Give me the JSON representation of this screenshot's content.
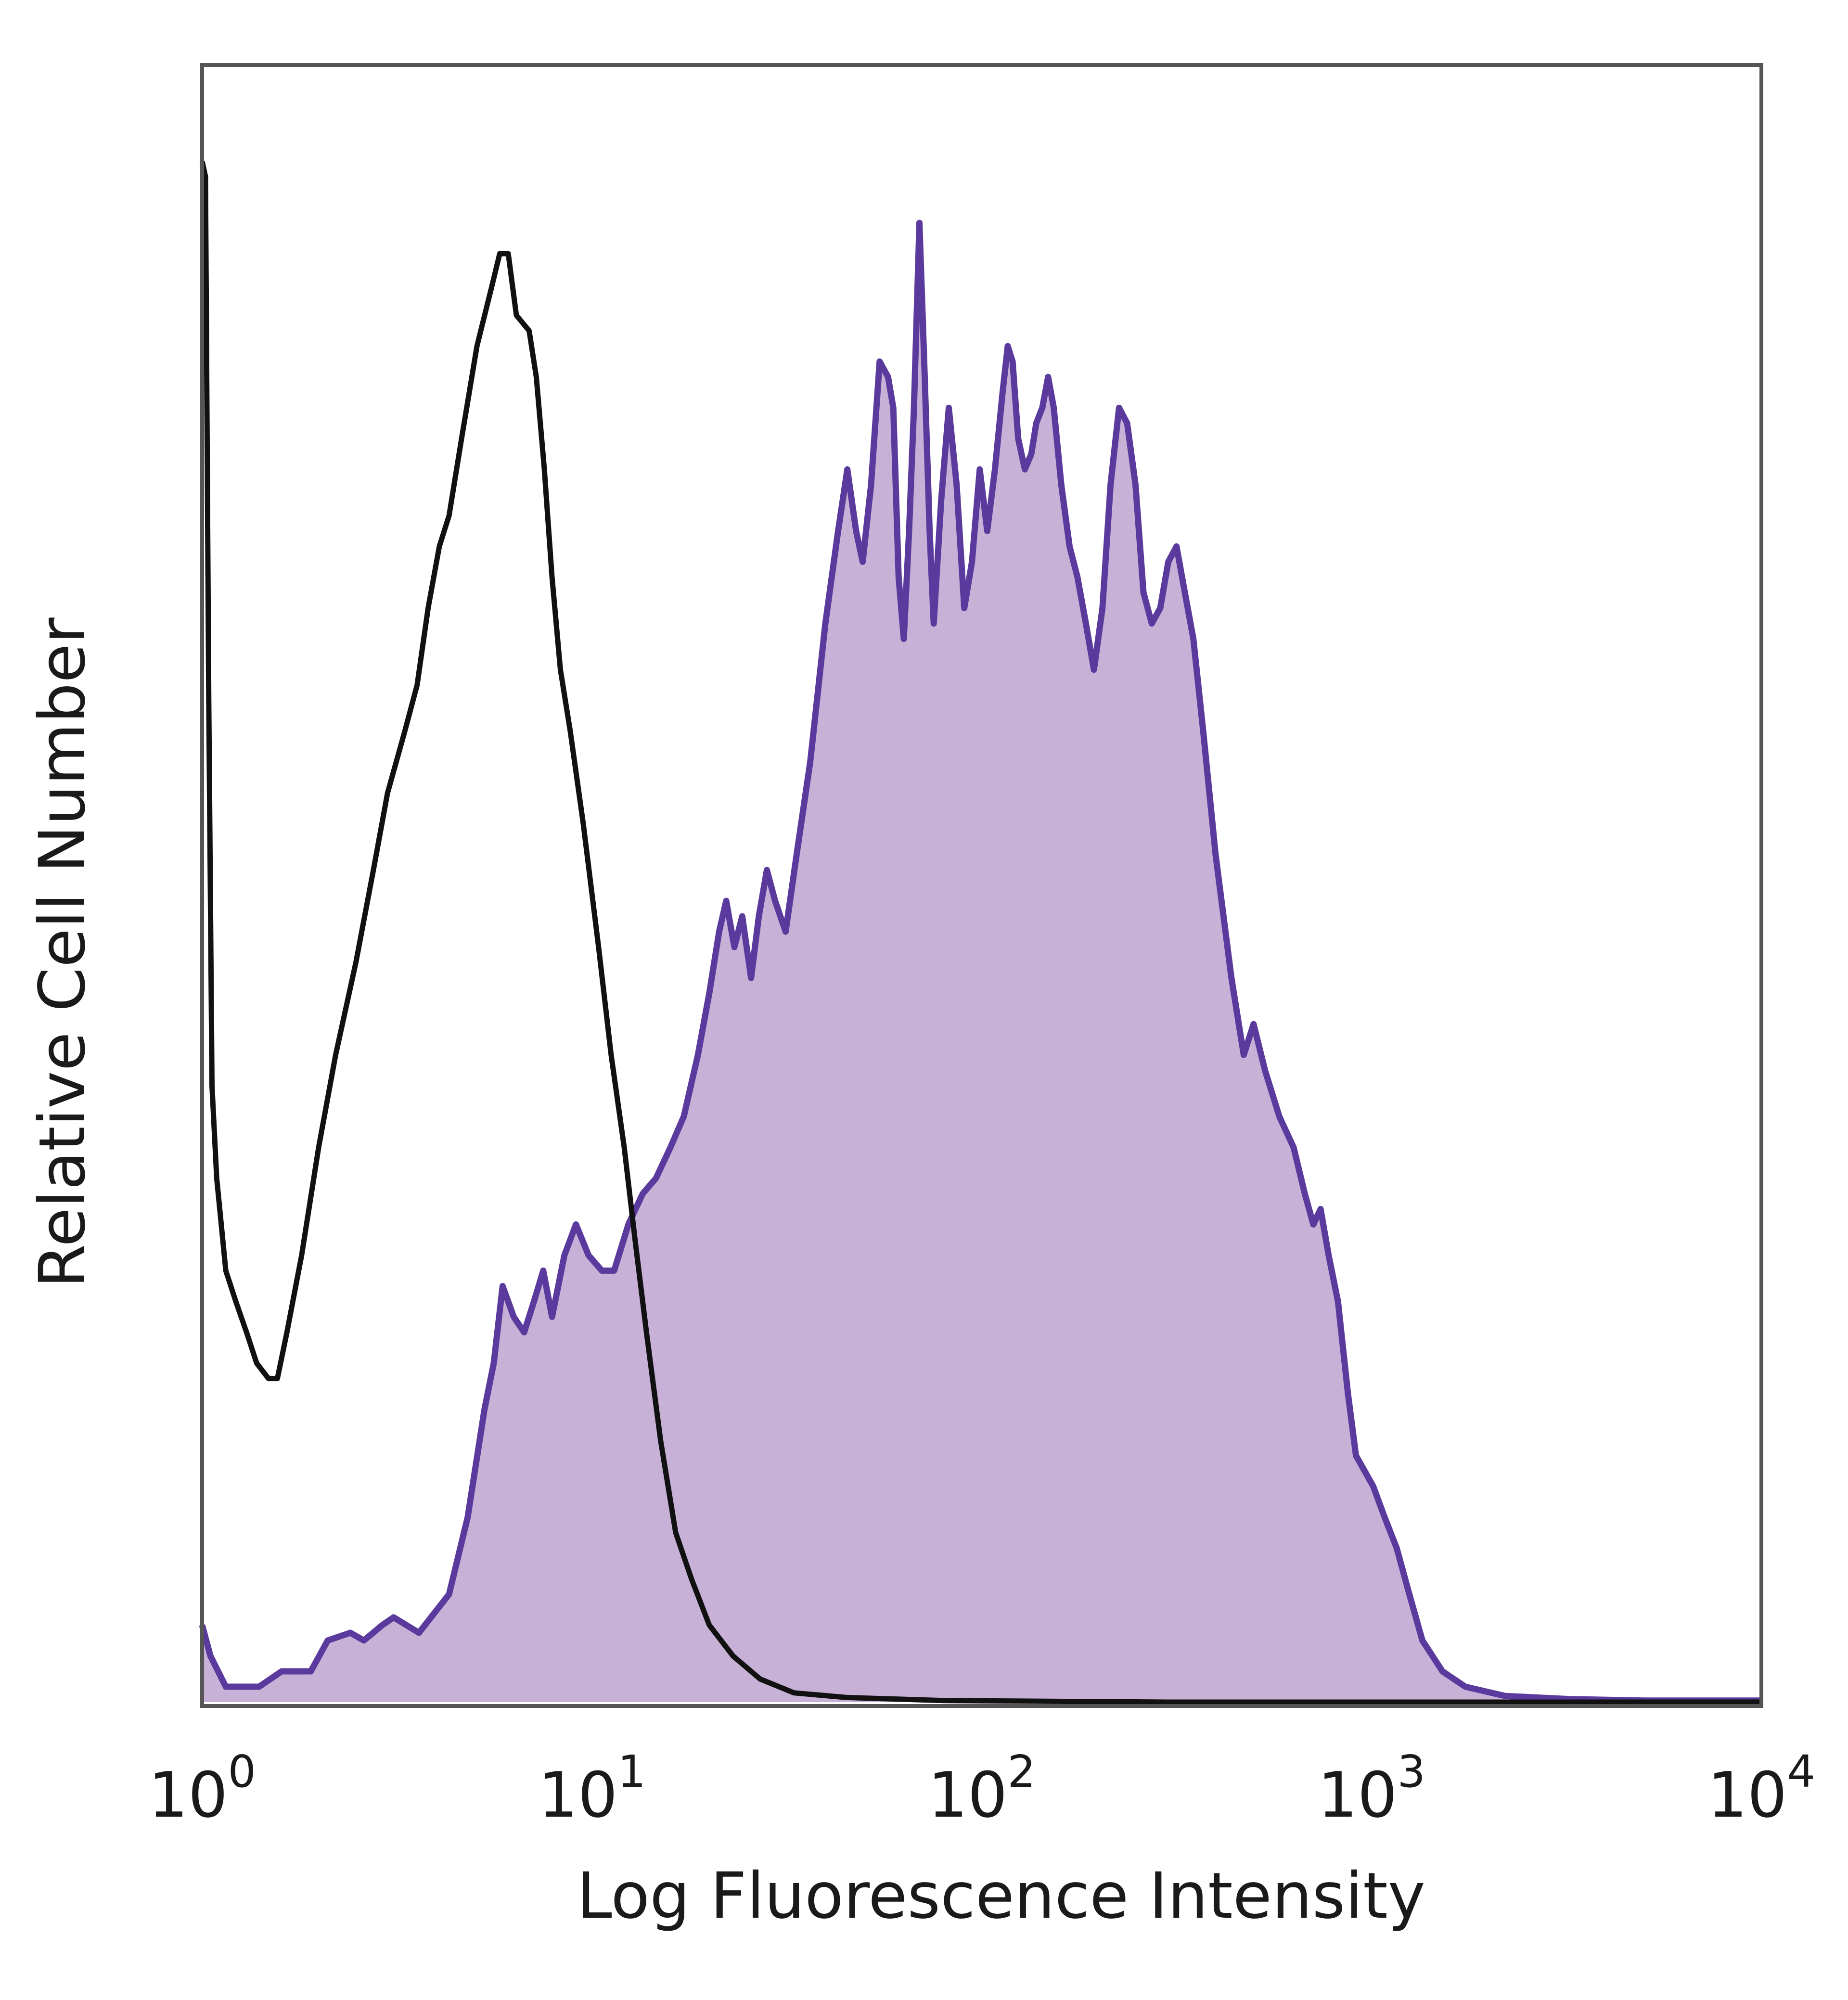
{
  "chart_data": {
    "type": "area",
    "xscale": "log",
    "xlim": [
      1,
      10000
    ],
    "ylim": [
      0,
      1
    ],
    "grid": false,
    "xlabel": "Log Fluorescence Intensity",
    "ylabel": "Relative Cell Number",
    "xticks": [
      {
        "base": "10",
        "exp": "0",
        "value": 1
      },
      {
        "base": "10",
        "exp": "1",
        "value": 10
      },
      {
        "base": "10",
        "exp": "2",
        "value": 100
      },
      {
        "base": "10",
        "exp": "3",
        "value": 1000
      },
      {
        "base": "10",
        "exp": "4",
        "value": 10000
      }
    ],
    "series": [
      {
        "style": "filled",
        "color": "#5b3a9e",
        "fill": "#c8b1d6",
        "points": [
          [
            1.0,
            0.05
          ],
          [
            1.05,
            0.03
          ],
          [
            1.15,
            0.01
          ],
          [
            1.4,
            0.01
          ],
          [
            1.6,
            0.02
          ],
          [
            1.9,
            0.02
          ],
          [
            2.1,
            0.04
          ],
          [
            2.4,
            0.045
          ],
          [
            2.6,
            0.04
          ],
          [
            2.9,
            0.05
          ],
          [
            3.1,
            0.055
          ],
          [
            3.6,
            0.045
          ],
          [
            4.3,
            0.07
          ],
          [
            4.8,
            0.12
          ],
          [
            5.3,
            0.19
          ],
          [
            5.6,
            0.22
          ],
          [
            5.9,
            0.27
          ],
          [
            6.3,
            0.25
          ],
          [
            6.7,
            0.24
          ],
          [
            7.1,
            0.26
          ],
          [
            7.5,
            0.28
          ],
          [
            7.9,
            0.25
          ],
          [
            8.5,
            0.29
          ],
          [
            9.1,
            0.31
          ],
          [
            9.8,
            0.29
          ],
          [
            10.6,
            0.28
          ],
          [
            11.4,
            0.28
          ],
          [
            12.4,
            0.31
          ],
          [
            13.5,
            0.33
          ],
          [
            14.6,
            0.34
          ],
          [
            15.9,
            0.36
          ],
          [
            17.2,
            0.38
          ],
          [
            18.7,
            0.42
          ],
          [
            20.0,
            0.46
          ],
          [
            21.2,
            0.5
          ],
          [
            22.1,
            0.52
          ],
          [
            23.2,
            0.49
          ],
          [
            24.3,
            0.51
          ],
          [
            25.6,
            0.47
          ],
          [
            26.8,
            0.51
          ],
          [
            28.1,
            0.54
          ],
          [
            29.5,
            0.52
          ],
          [
            31.4,
            0.5
          ],
          [
            33.5,
            0.55
          ],
          [
            36.3,
            0.61
          ],
          [
            39.7,
            0.7
          ],
          [
            42.8,
            0.76
          ],
          [
            45.2,
            0.8
          ],
          [
            47.6,
            0.76
          ],
          [
            49.5,
            0.74
          ],
          [
            52.0,
            0.79
          ],
          [
            54.7,
            0.87
          ],
          [
            57.5,
            0.86
          ],
          [
            59.3,
            0.84
          ],
          [
            61.2,
            0.73
          ],
          [
            63.1,
            0.69
          ],
          [
            65.1,
            0.76
          ],
          [
            67.0,
            0.84
          ],
          [
            69.2,
            0.96
          ],
          [
            71.4,
            0.86
          ],
          [
            73.5,
            0.76
          ],
          [
            75.3,
            0.7
          ],
          [
            78.7,
            0.78
          ],
          [
            82.3,
            0.84
          ],
          [
            86.2,
            0.79
          ],
          [
            90.2,
            0.71
          ],
          [
            94.4,
            0.74
          ],
          [
            98.8,
            0.8
          ],
          [
            103.3,
            0.76
          ],
          [
            108.1,
            0.8
          ],
          [
            113.1,
            0.85
          ],
          [
            116.6,
            0.88
          ],
          [
            120.0,
            0.87
          ],
          [
            124.0,
            0.82
          ],
          [
            129.0,
            0.8
          ],
          [
            134.0,
            0.81
          ],
          [
            138.0,
            0.83
          ],
          [
            143.0,
            0.84
          ],
          [
            148.0,
            0.86
          ],
          [
            153.0,
            0.84
          ],
          [
            160.0,
            0.79
          ],
          [
            168.0,
            0.75
          ],
          [
            176.0,
            0.73
          ],
          [
            185.0,
            0.7
          ],
          [
            194.0,
            0.67
          ],
          [
            204.0,
            0.71
          ],
          [
            214.0,
            0.79
          ],
          [
            225.0,
            0.84
          ],
          [
            236.0,
            0.83
          ],
          [
            248.0,
            0.79
          ],
          [
            260.0,
            0.72
          ],
          [
            273.0,
            0.7
          ],
          [
            287.0,
            0.71
          ],
          [
            301.0,
            0.74
          ],
          [
            316.0,
            0.75
          ],
          [
            332.0,
            0.72
          ],
          [
            349.0,
            0.69
          ],
          [
            370.0,
            0.63
          ],
          [
            398.0,
            0.55
          ],
          [
            437.0,
            0.47
          ],
          [
            470.0,
            0.42
          ],
          [
            498.0,
            0.44
          ],
          [
            533.0,
            0.41
          ],
          [
            580.0,
            0.38
          ],
          [
            631.0,
            0.36
          ],
          [
            674.0,
            0.33
          ],
          [
            709.0,
            0.31
          ],
          [
            740.0,
            0.32
          ],
          [
            776.0,
            0.29
          ],
          [
            820.0,
            0.26
          ],
          [
            870.0,
            0.2
          ],
          [
            912.0,
            0.16
          ],
          [
            960.0,
            0.15
          ],
          [
            1010.0,
            0.14
          ],
          [
            1080.0,
            0.12
          ],
          [
            1160.0,
            0.1
          ],
          [
            1250.0,
            0.07
          ],
          [
            1350.0,
            0.04
          ],
          [
            1520.0,
            0.02
          ],
          [
            1740.0,
            0.01
          ],
          [
            2200.0,
            0.004
          ],
          [
            3200.0,
            0.002
          ],
          [
            5000.0,
            0.001
          ],
          [
            10000.0,
            0.001
          ]
        ]
      },
      {
        "style": "line",
        "color": "#111111",
        "points": [
          [
            1.0,
            1.0
          ],
          [
            1.02,
            0.99
          ],
          [
            1.04,
            0.65
          ],
          [
            1.06,
            0.4
          ],
          [
            1.09,
            0.34
          ],
          [
            1.15,
            0.28
          ],
          [
            1.22,
            0.26
          ],
          [
            1.3,
            0.24
          ],
          [
            1.38,
            0.22
          ],
          [
            1.48,
            0.21
          ],
          [
            1.56,
            0.21
          ],
          [
            1.65,
            0.24
          ],
          [
            1.8,
            0.29
          ],
          [
            1.99,
            0.36
          ],
          [
            2.2,
            0.42
          ],
          [
            2.48,
            0.48
          ],
          [
            2.75,
            0.54
          ],
          [
            2.99,
            0.59
          ],
          [
            3.31,
            0.63
          ],
          [
            3.56,
            0.66
          ],
          [
            3.8,
            0.71
          ],
          [
            4.06,
            0.75
          ],
          [
            4.3,
            0.77
          ],
          [
            4.63,
            0.82
          ],
          [
            5.07,
            0.88
          ],
          [
            5.55,
            0.92
          ],
          [
            5.8,
            0.94
          ],
          [
            6.1,
            0.94
          ],
          [
            6.4,
            0.9
          ],
          [
            6.9,
            0.89
          ],
          [
            7.2,
            0.86
          ],
          [
            7.55,
            0.8
          ],
          [
            7.9,
            0.73
          ],
          [
            8.3,
            0.67
          ],
          [
            8.8,
            0.63
          ],
          [
            9.5,
            0.57
          ],
          [
            10.4,
            0.49
          ],
          [
            11.2,
            0.42
          ],
          [
            12.1,
            0.36
          ],
          [
            12.9,
            0.3
          ],
          [
            13.8,
            0.24
          ],
          [
            15.0,
            0.17
          ],
          [
            16.4,
            0.11
          ],
          [
            18.0,
            0.08
          ],
          [
            20.0,
            0.05
          ],
          [
            23.0,
            0.03
          ],
          [
            27.0,
            0.015
          ],
          [
            33.0,
            0.006
          ],
          [
            45.0,
            0.003
          ],
          [
            80.0,
            0.001
          ],
          [
            300.0,
            0.0
          ],
          [
            10000.0,
            0.0
          ]
        ]
      }
    ]
  }
}
